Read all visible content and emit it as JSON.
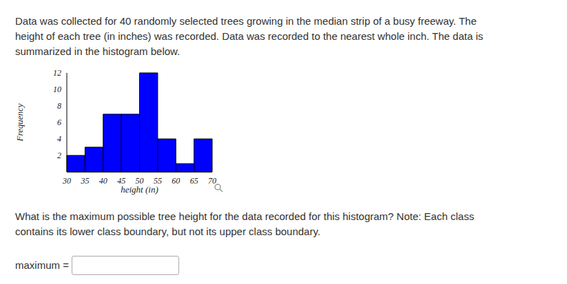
{
  "intro": "Data was collected for 40 randomly selected trees growing in the median strip of a busy freeway. The height of each tree (in inches) was recorded. Data was recorded to the nearest whole inch. The data is summarized in the histogram below.",
  "chart_data": {
    "type": "histogram",
    "bins": [
      30,
      35,
      40,
      45,
      50,
      55,
      60,
      65,
      70
    ],
    "counts": [
      2,
      3,
      7,
      7,
      12,
      4,
      1,
      4
    ],
    "color": "#0000ff",
    "xlabel": "height (in)",
    "ylabel": "Frequency",
    "xlim": [
      30,
      70
    ],
    "xticks": [
      30,
      35,
      40,
      45,
      50,
      55,
      60,
      65,
      70
    ],
    "ylim": [
      0,
      12
    ],
    "yticks": [
      2,
      4,
      6,
      8,
      10,
      12
    ]
  },
  "question": "What is the maximum possible tree height for the data recorded for this histogram? Note: Each class contains its lower class boundary, but not its upper class boundary.",
  "answer_label": "maximum ="
}
